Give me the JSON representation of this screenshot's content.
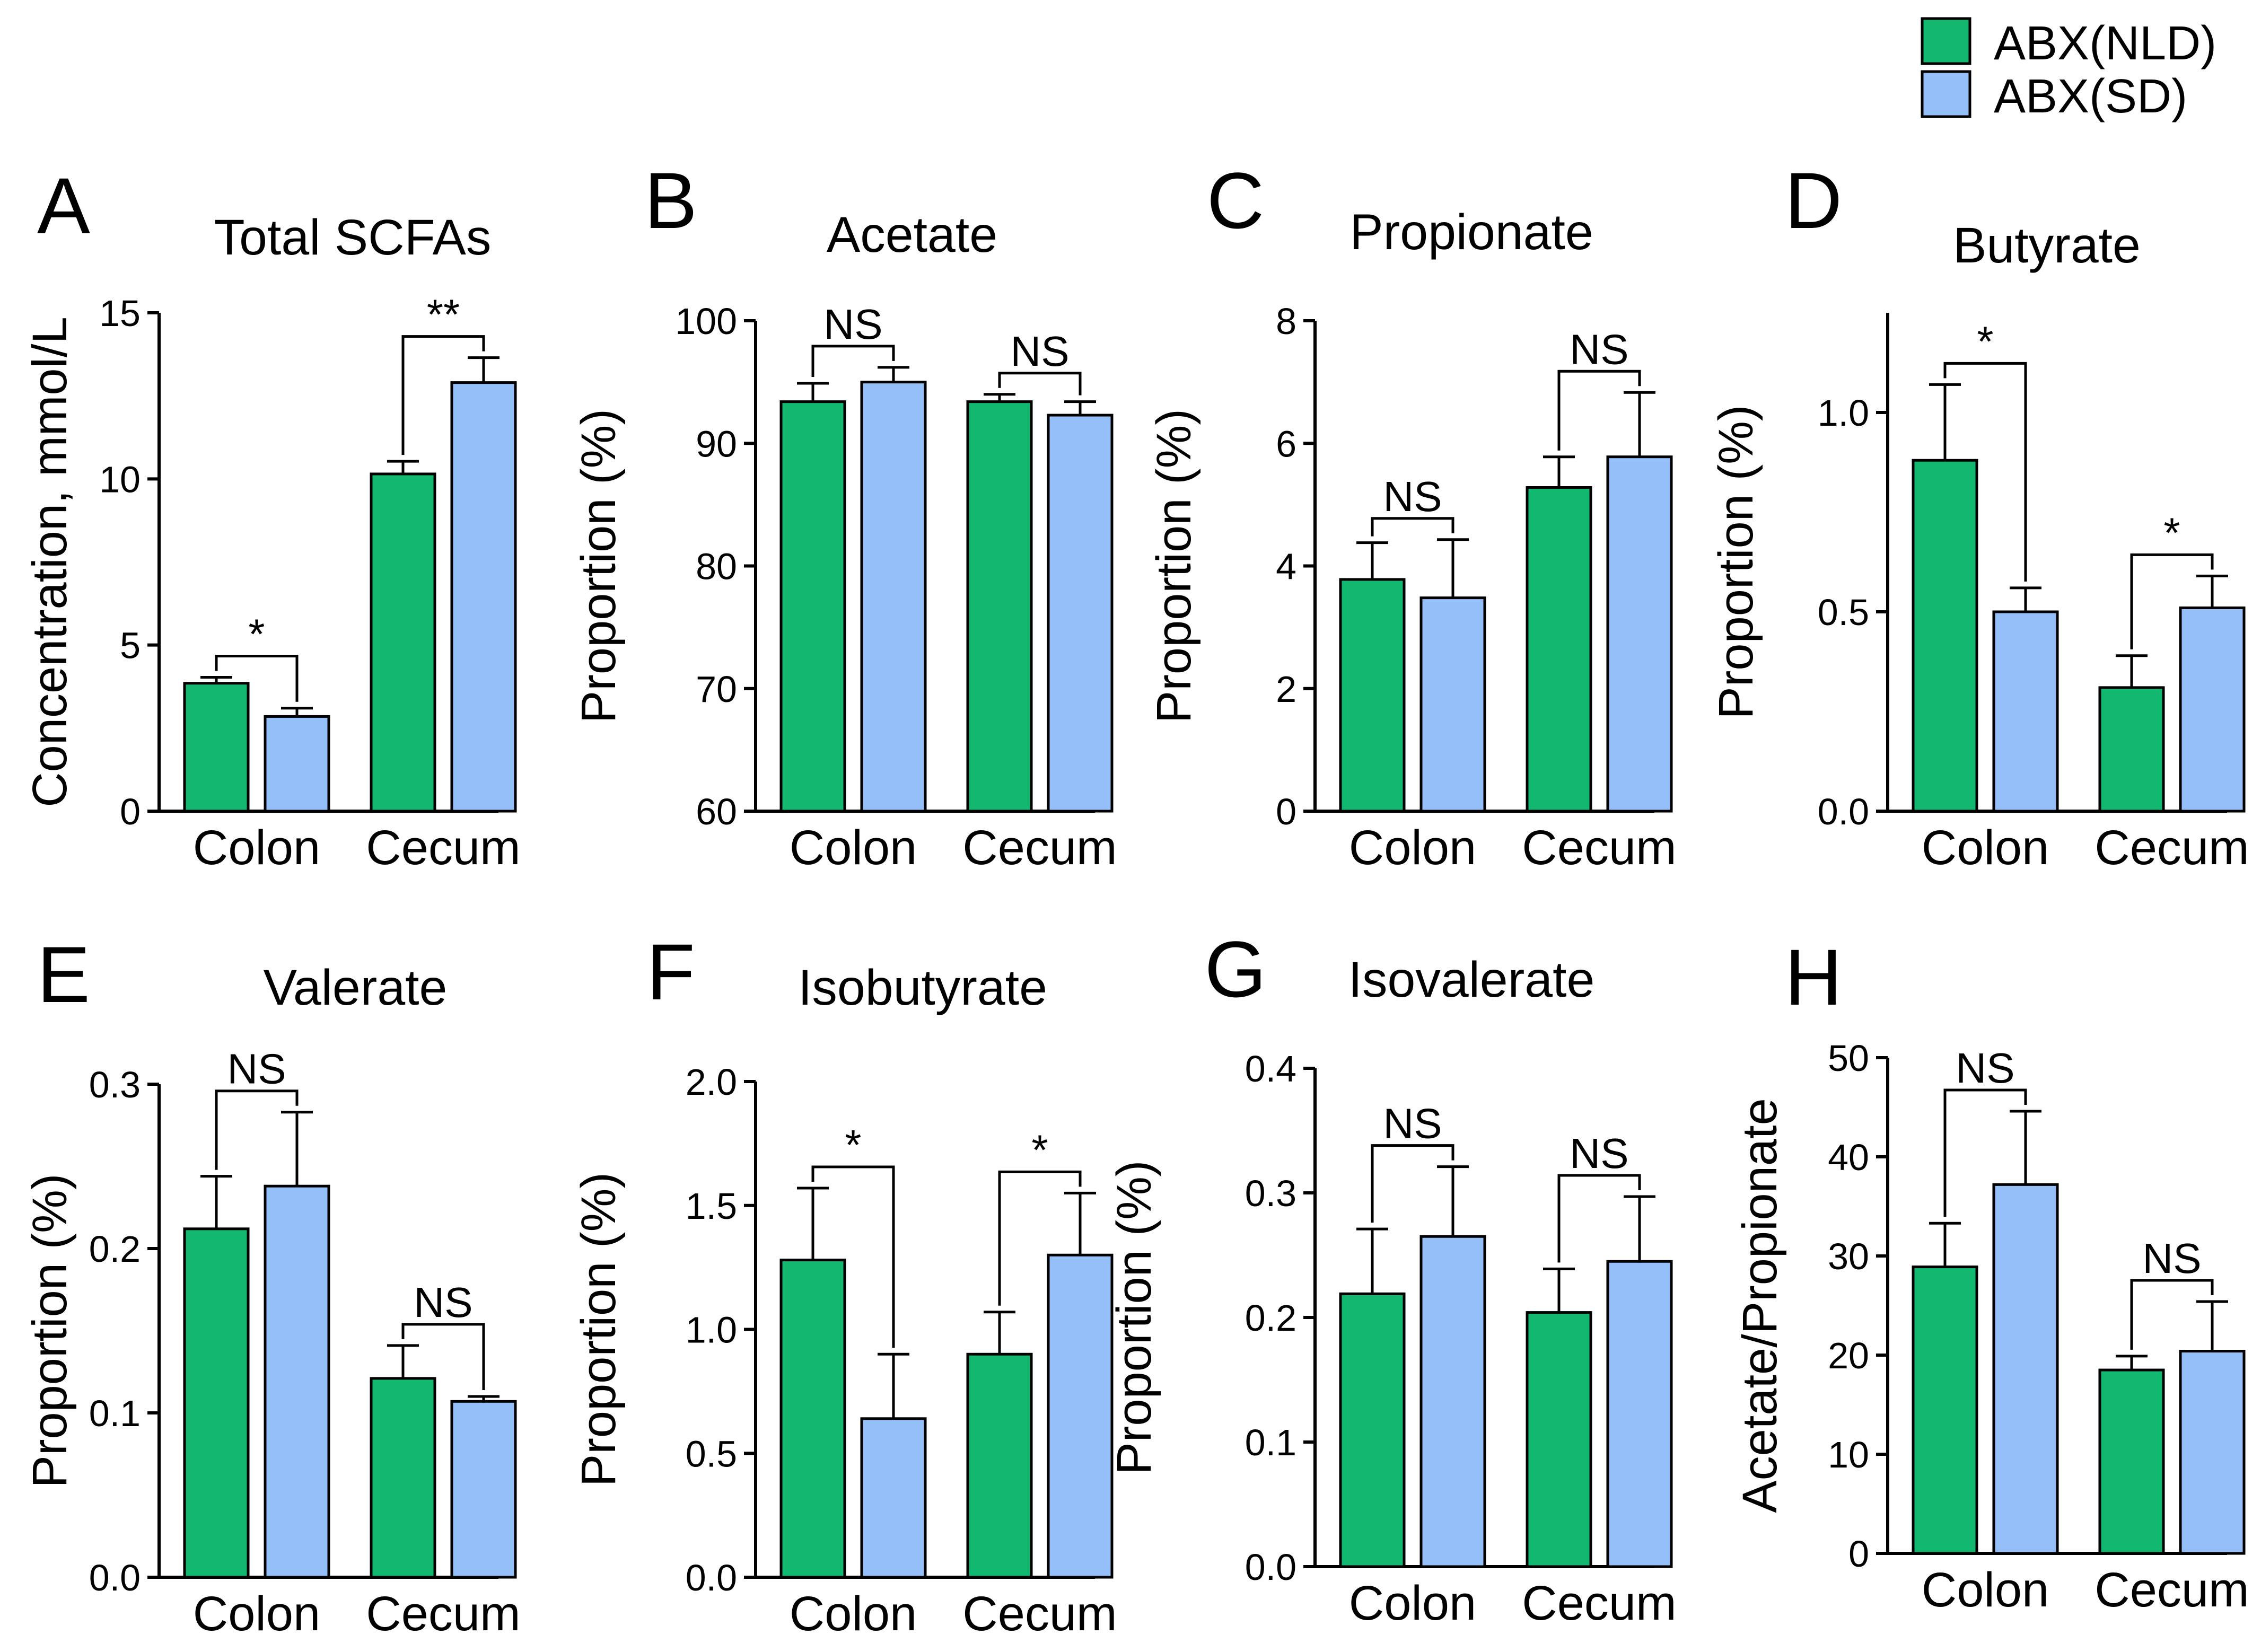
{
  "legend": {
    "entries": [
      {
        "label": "ABX(NLD)",
        "color": "#12b870"
      },
      {
        "label": "ABX(SD)",
        "color": "#95bff8"
      }
    ]
  },
  "colors": {
    "group1": "#12b870",
    "group2": "#95bff8",
    "axis": "#000000"
  },
  "chart_data": [
    {
      "letter": "A",
      "type": "bar",
      "title": "Total SCFAs",
      "ylabel": "Concentration, mmol/L",
      "xlabel": "",
      "ylim": [
        0,
        15
      ],
      "yticks": [
        "0",
        "5",
        "10",
        "15"
      ],
      "categories": [
        "Colon",
        "Cecum"
      ],
      "series": [
        {
          "name": "ABX(NLD)",
          "values": [
            3.85,
            10.15
          ],
          "errors": [
            0.18,
            0.38
          ]
        },
        {
          "name": "ABX(SD)",
          "values": [
            2.85,
            12.9
          ],
          "errors": [
            0.25,
            0.75
          ]
        }
      ],
      "annotations": [
        "*",
        "**"
      ]
    },
    {
      "letter": "B",
      "type": "bar",
      "title": "Acetate",
      "ylabel": "Proportion (%)",
      "xlabel": "",
      "ylim": [
        60,
        100
      ],
      "yticks": [
        "60",
        "70",
        "80",
        "90",
        "100"
      ],
      "categories": [
        "Colon",
        "Cecum"
      ],
      "series": [
        {
          "name": "ABX(NLD)",
          "values": [
            93.4,
            93.4
          ],
          "errors": [
            1.5,
            0.6
          ]
        },
        {
          "name": "ABX(SD)",
          "values": [
            95.0,
            92.3
          ],
          "errors": [
            1.2,
            1.1
          ]
        }
      ],
      "annotations": [
        "NS",
        "NS"
      ]
    },
    {
      "letter": "C",
      "type": "bar",
      "title": "Propionate",
      "ylabel": "Proportion (%)",
      "xlabel": "",
      "ylim": [
        0,
        8
      ],
      "yticks": [
        "0",
        "2",
        "4",
        "6",
        "8"
      ],
      "categories": [
        "Colon",
        "Cecum"
      ],
      "series": [
        {
          "name": "ABX(NLD)",
          "values": [
            3.78,
            5.28
          ],
          "errors": [
            0.6,
            0.5
          ]
        },
        {
          "name": "ABX(SD)",
          "values": [
            3.48,
            5.78
          ],
          "errors": [
            0.95,
            1.05
          ]
        }
      ],
      "annotations": [
        "NS",
        "NS"
      ]
    },
    {
      "letter": "D",
      "type": "bar",
      "title": "Butyrate",
      "ylabel": "Proportion (%)",
      "xlabel": "",
      "ylim": [
        0,
        1.25
      ],
      "yticks": [
        "0.0",
        "0.5",
        "1.0"
      ],
      "categories": [
        "Colon",
        "Cecum"
      ],
      "series": [
        {
          "name": "ABX(NLD)",
          "values": [
            0.88,
            0.31
          ],
          "errors": [
            0.19,
            0.08
          ]
        },
        {
          "name": "ABX(SD)",
          "values": [
            0.5,
            0.51
          ],
          "errors": [
            0.06,
            0.08
          ]
        }
      ],
      "annotations": [
        "*",
        "*"
      ]
    },
    {
      "letter": "E",
      "type": "bar",
      "title": "Valerate",
      "ylabel": "Proportion (%)",
      "xlabel": "",
      "ylim": [
        0,
        0.3
      ],
      "yticks": [
        "0.0",
        "0.1",
        "0.2",
        "0.3"
      ],
      "categories": [
        "Colon",
        "Cecum"
      ],
      "series": [
        {
          "name": "ABX(NLD)",
          "values": [
            0.212,
            0.121
          ],
          "errors": [
            0.032,
            0.02
          ]
        },
        {
          "name": "ABX(SD)",
          "values": [
            0.238,
            0.107
          ],
          "errors": [
            0.045,
            0.003
          ]
        }
      ],
      "annotations": [
        "NS",
        "NS"
      ]
    },
    {
      "letter": "F",
      "type": "bar",
      "title": "Isobutyrate",
      "ylabel": "Proportion (%)",
      "xlabel": "",
      "ylim": [
        0,
        2.0
      ],
      "yticks": [
        "0.0",
        "0.5",
        "1.0",
        "1.5",
        "2.0"
      ],
      "categories": [
        "Colon",
        "Cecum"
      ],
      "series": [
        {
          "name": "ABX(NLD)",
          "values": [
            1.28,
            0.9
          ],
          "errors": [
            0.29,
            0.17
          ]
        },
        {
          "name": "ABX(SD)",
          "values": [
            0.64,
            1.3
          ],
          "errors": [
            0.26,
            0.25
          ]
        }
      ],
      "annotations": [
        "*",
        "*"
      ]
    },
    {
      "letter": "G",
      "type": "bar",
      "title": "Isovalerate",
      "ylabel": "Proportion (%)",
      "xlabel": "",
      "ylim": [
        0,
        0.4
      ],
      "yticks": [
        "0.0",
        "0.1",
        "0.2",
        "0.3",
        "0.4"
      ],
      "categories": [
        "Colon",
        "Cecum"
      ],
      "series": [
        {
          "name": "ABX(NLD)",
          "values": [
            0.219,
            0.204
          ],
          "errors": [
            0.052,
            0.035
          ]
        },
        {
          "name": "ABX(SD)",
          "values": [
            0.265,
            0.245
          ],
          "errors": [
            0.056,
            0.052
          ]
        }
      ],
      "annotations": [
        "NS",
        "NS"
      ]
    },
    {
      "letter": "H",
      "type": "bar",
      "title": "",
      "ylabel": "Acetate/Propionate",
      "xlabel": "",
      "ylim": [
        0,
        50
      ],
      "yticks": [
        "0",
        "10",
        "20",
        "30",
        "40",
        "50"
      ],
      "categories": [
        "Colon",
        "Cecum"
      ],
      "series": [
        {
          "name": "ABX(NLD)",
          "values": [
            28.9,
            18.5
          ],
          "errors": [
            4.4,
            1.4
          ]
        },
        {
          "name": "ABX(SD)",
          "values": [
            37.2,
            20.4
          ],
          "errors": [
            7.4,
            5.0
          ]
        }
      ],
      "annotations": [
        "NS",
        "NS"
      ]
    }
  ]
}
